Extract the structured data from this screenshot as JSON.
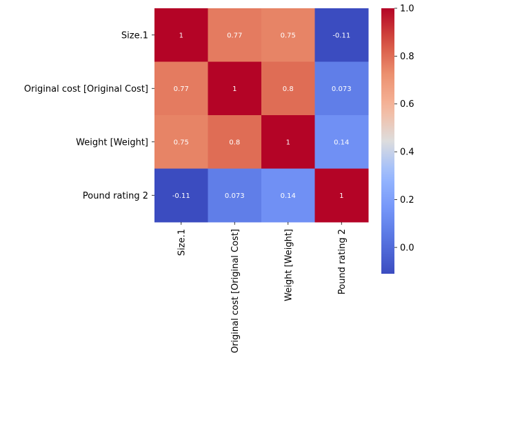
{
  "chart_data": {
    "type": "heatmap",
    "title": "",
    "xlabel": "",
    "ylabel": "",
    "rows": [
      "Size.1",
      "Original cost [Original Cost]",
      "Weight [Weight]",
      "Pound rating 2"
    ],
    "columns": [
      "Size.1",
      "Original cost [Original Cost]",
      "Weight [Weight]",
      "Pound rating 2"
    ],
    "values": [
      [
        1,
        0.77,
        0.75,
        -0.11
      ],
      [
        0.77,
        1,
        0.8,
        0.073
      ],
      [
        0.75,
        0.8,
        1,
        0.14
      ],
      [
        -0.11,
        0.073,
        0.14,
        1
      ]
    ],
    "annotations": [
      [
        "1",
        "0.77",
        "0.75",
        "-0.11"
      ],
      [
        "0.77",
        "1",
        "0.8",
        "0.073"
      ],
      [
        "0.75",
        "0.8",
        "1",
        "0.14"
      ],
      [
        "-0.11",
        "0.073",
        "0.14",
        "1"
      ]
    ],
    "colormap": "coolwarm",
    "vmin": -0.11,
    "vmax": 1.0,
    "colorbar": {
      "ticks": [
        0.0,
        0.2,
        0.4,
        0.6,
        0.8,
        1.0
      ],
      "tick_labels": [
        "0.0",
        "0.2",
        "0.4",
        "0.6",
        "0.8",
        "1.0"
      ],
      "placement": "right"
    },
    "grid": false
  }
}
